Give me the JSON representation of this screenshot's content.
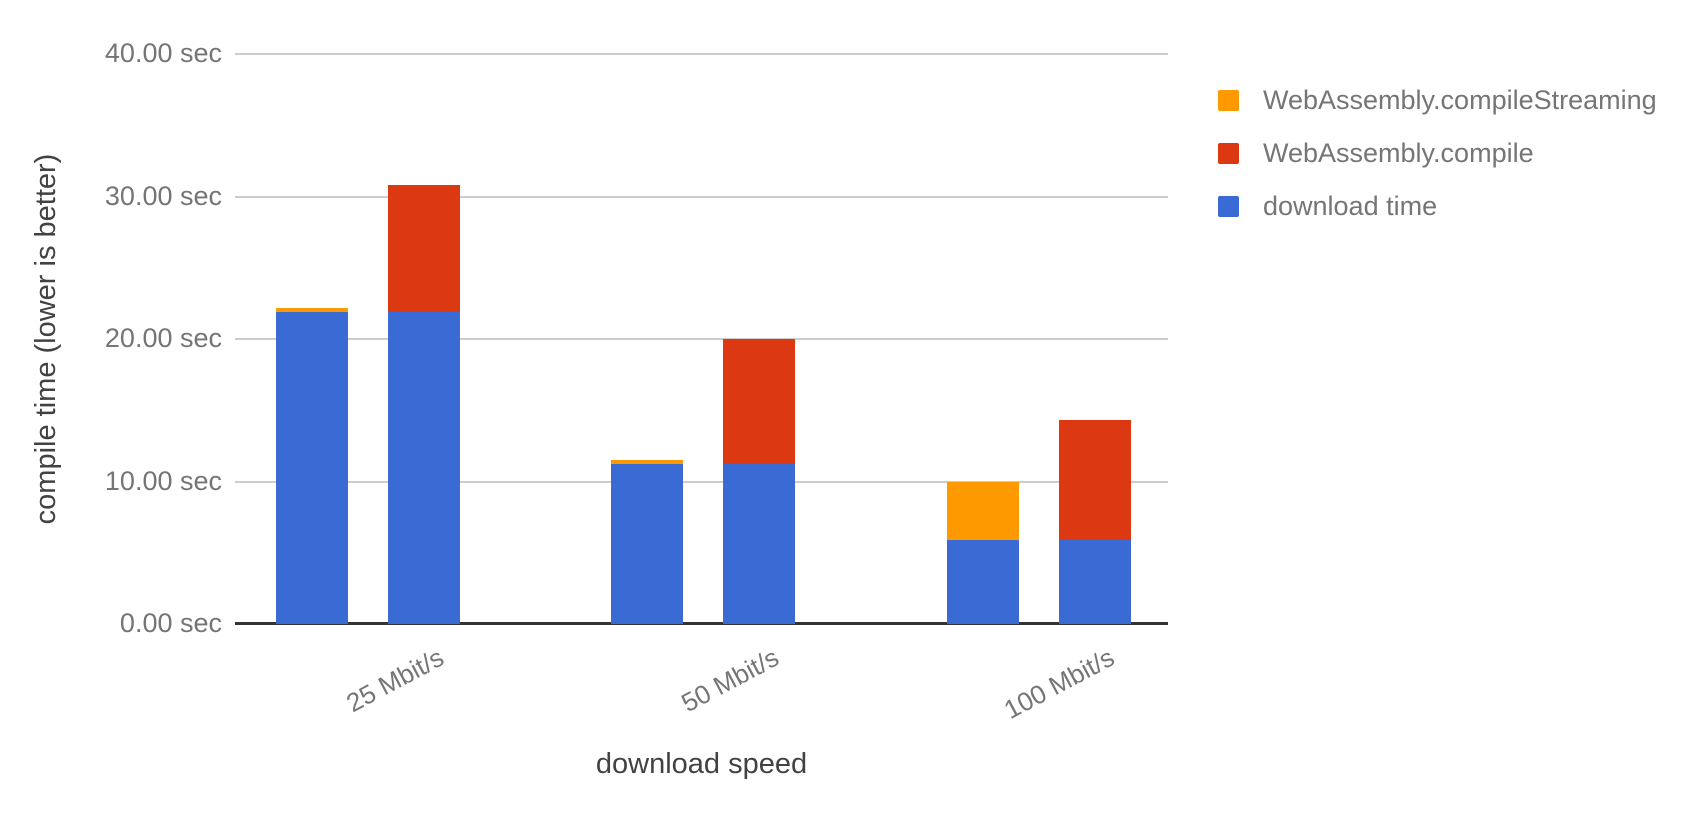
{
  "chart_data": {
    "type": "bar",
    "stacked": true,
    "orientation": "vertical",
    "title": "",
    "xlabel": "download speed",
    "ylabel": "compile time (lower is better)",
    "categories": [
      "25 Mbit/s",
      "50 Mbit/s",
      "100 Mbit/s"
    ],
    "ylim": [
      0,
      40
    ],
    "grid": true,
    "legend_position": "right",
    "y_ticks": [
      {
        "value": 40,
        "label": "40.00 sec"
      },
      {
        "value": 30,
        "label": "30.00 sec"
      },
      {
        "value": 20,
        "label": "20.00 sec"
      },
      {
        "value": 10,
        "label": "10.00 sec"
      },
      {
        "value": 0,
        "label": "0.00 sec"
      }
    ],
    "series": [
      {
        "name": "download time",
        "color": "#3A6BD4",
        "values": [
          21.9,
          11.2,
          5.9
        ]
      },
      {
        "name": "WebAssembly.compileStreaming",
        "color": "#FF9900",
        "values": [
          0.3,
          0.3,
          4.1
        ]
      },
      {
        "name": "WebAssembly.compile",
        "color": "#DC3912",
        "values": [
          8.9,
          8.8,
          8.4
        ]
      }
    ],
    "bars_per_category": [
      {
        "name": "compileStreaming-bar",
        "stack": [
          "download time",
          "WebAssembly.compileStreaming"
        ]
      },
      {
        "name": "compile-bar",
        "stack": [
          "download time",
          "WebAssembly.compile"
        ]
      }
    ],
    "bar_totals": {
      "compileStreaming-bar": [
        22.2,
        11.5,
        10.0
      ],
      "compile-bar": [
        30.8,
        20.0,
        14.3
      ]
    },
    "legend": [
      {
        "label": "WebAssembly.compileStreaming",
        "color": "#FF9900"
      },
      {
        "label": "WebAssembly.compile",
        "color": "#DC3912"
      },
      {
        "label": "download time",
        "color": "#3A6BD4"
      }
    ],
    "colors": {
      "gridline": "#cccccc",
      "axis_line": "#333333",
      "tick_label": "#757575",
      "axis_title": "#424242",
      "legend_text": "#757575",
      "background": "#ffffff"
    }
  }
}
